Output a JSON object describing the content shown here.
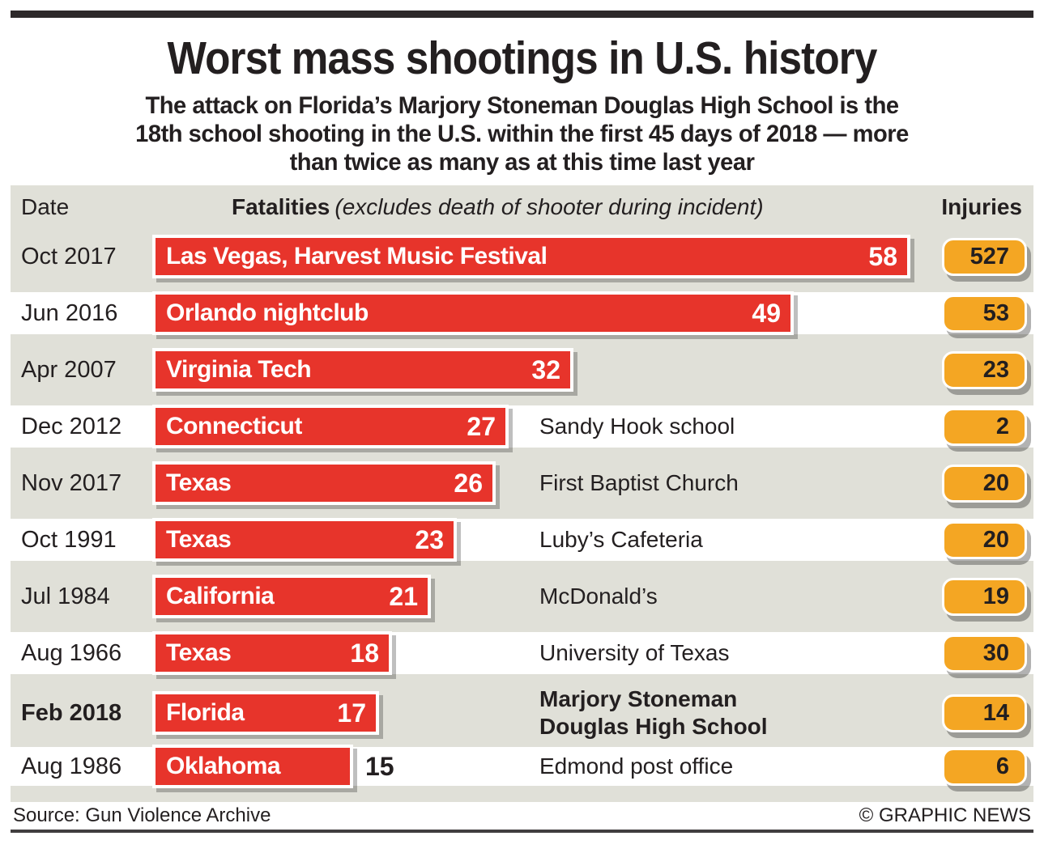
{
  "header": {
    "title": "Worst mass shootings in U.S. history",
    "subtitle": "The attack on Florida’s Marjory Stoneman Douglas High School is the\n18th school shooting in the U.S. within the first 45 days of 2018 — more\nthan twice as many as at this time last year"
  },
  "table": {
    "columns": {
      "date": "Date",
      "fatalities": "Fatalities",
      "fatalities_note": "(excludes death of shooter during incident)",
      "injuries": "Injuries"
    },
    "rows": [
      {
        "date": "Oct 2017",
        "location": "Las Vegas, Harvest Music Festival",
        "fatalities": 58,
        "venue": "",
        "injuries": 527,
        "shaded": true,
        "emphasis": false,
        "size": "normal",
        "fatalities_outside": false
      },
      {
        "date": "Jun 2016",
        "location": "Orlando nightclub",
        "fatalities": 49,
        "venue": "",
        "injuries": 53,
        "shaded": false,
        "emphasis": false,
        "size": "normal",
        "fatalities_outside": false
      },
      {
        "date": "Apr 2007",
        "location": "Virginia Tech",
        "fatalities": 32,
        "venue": "",
        "injuries": 23,
        "shaded": true,
        "emphasis": false,
        "size": "normal",
        "fatalities_outside": false
      },
      {
        "date": "Dec 2012",
        "location": "Connecticut",
        "fatalities": 27,
        "venue": "Sandy Hook school",
        "injuries": 2,
        "shaded": false,
        "emphasis": false,
        "size": "normal",
        "fatalities_outside": false
      },
      {
        "date": "Nov 2017",
        "location": "Texas",
        "fatalities": 26,
        "venue": "First Baptist Church",
        "injuries": 20,
        "shaded": true,
        "emphasis": false,
        "size": "normal",
        "fatalities_outside": false
      },
      {
        "date": "Oct 1991",
        "location": "Texas",
        "fatalities": 23,
        "venue": "Luby’s Cafeteria",
        "injuries": 20,
        "shaded": false,
        "emphasis": false,
        "size": "normal",
        "fatalities_outside": false
      },
      {
        "date": "Jul 1984",
        "location": "California",
        "fatalities": 21,
        "venue": "McDonald’s",
        "injuries": 19,
        "shaded": true,
        "emphasis": false,
        "size": "normal",
        "fatalities_outside": false
      },
      {
        "date": "Aug 1966",
        "location": "Texas",
        "fatalities": 18,
        "venue": "University of Texas",
        "injuries": 30,
        "shaded": false,
        "emphasis": false,
        "size": "normal",
        "fatalities_outside": false
      },
      {
        "date": "Feb 2018",
        "location": "Florida",
        "fatalities": 17,
        "venue": "Marjory Stoneman\nDouglas High School",
        "injuries": 14,
        "shaded": true,
        "emphasis": true,
        "size": "tall",
        "fatalities_outside": false
      },
      {
        "date": "Aug 1986",
        "location": "Oklahoma",
        "fatalities": 15,
        "venue": "Edmond post office",
        "injuries": 6,
        "shaded": false,
        "emphasis": false,
        "size": "short",
        "fatalities_outside": true
      }
    ]
  },
  "footer": {
    "source": "Source: Gun Violence Archive",
    "credit": "© GRAPHIC NEWS"
  },
  "colors": {
    "bar_red": "#e7342b",
    "injury_orange": "#f4a623",
    "row_gray": "#e0e0d8",
    "rule_black": "#2d292a",
    "text_black": "#231f20"
  },
  "chart_data": {
    "type": "bar",
    "orientation": "horizontal",
    "title": "Worst mass shootings in U.S. history",
    "subtitle": "The attack on Florida’s Marjory Stoneman Douglas High School is the 18th school shooting in the U.S. within the first 45 days of 2018 — more than twice as many as at this time last year",
    "categories": [
      "Oct 2017",
      "Jun 2016",
      "Apr 2007",
      "Dec 2012",
      "Nov 2017",
      "Oct 1991",
      "Jul 1984",
      "Aug 1966",
      "Feb 2018",
      "Aug 1986"
    ],
    "bar_labels": [
      "Las Vegas, Harvest Music Festival",
      "Orlando nightclub",
      "Virginia Tech",
      "Connecticut",
      "Texas",
      "Texas",
      "California",
      "Texas",
      "Florida",
      "Oklahoma"
    ],
    "venues": [
      "",
      "",
      "",
      "Sandy Hook school",
      "First Baptist Church",
      "Luby’s Cafeteria",
      "McDonald’s",
      "University of Texas",
      "Marjory Stoneman Douglas High School",
      "Edmond post office"
    ],
    "series": [
      {
        "name": "Fatalities",
        "values": [
          58,
          49,
          32,
          27,
          26,
          23,
          21,
          18,
          17,
          15
        ]
      },
      {
        "name": "Injuries",
        "values": [
          527,
          53,
          23,
          2,
          20,
          20,
          19,
          30,
          14,
          6
        ]
      }
    ],
    "xlabel": "Fatalities (excludes death of shooter during incident)",
    "ylabel": "Date",
    "xlim": [
      0,
      58
    ],
    "grid": false,
    "legend_position": "none",
    "source": "Gun Violence Archive"
  }
}
